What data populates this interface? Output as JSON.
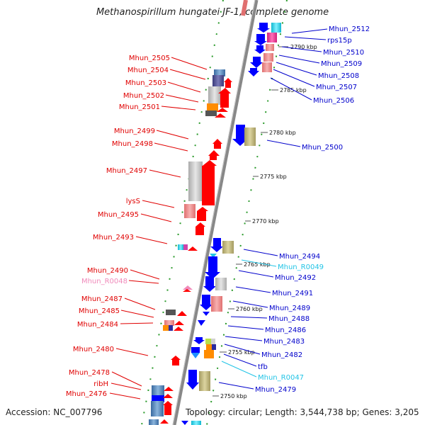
{
  "title": "Methanospirillum hungatei JF-1, complete genome",
  "accession": "Accession: NC_007796",
  "summary": "Topology: circular; Length: 3,544,738 bp; Genes: 3,205",
  "colors": {
    "left_label": "#e00000",
    "right_label": "#0000cc",
    "rna_label_cyan": "#22c4e6",
    "rna_label_pink": "#f08aba",
    "left_gene": "#ff0000",
    "right_gene": "#0000ff",
    "backbone": "#888888",
    "dots": "#2a9a2a"
  },
  "kbp_ticks": [
    "2790 kbp",
    "2785 kbp",
    "2780 kbp",
    "2775 kbp",
    "2770 kbp",
    "2765 kbp",
    "2760 kbp",
    "2755 kbp",
    "2750 kbp"
  ],
  "left_labels": [
    "Mhun_2505",
    "Mhun_2504",
    "Mhun_2503",
    "Mhun_2502",
    "Mhun_2501",
    "Mhun_2499",
    "Mhun_2498",
    "Mhun_2497",
    "lysS",
    "Mhun_2495",
    "Mhun_2493",
    "Mhun_2490",
    "Mhun_R0048",
    "Mhun_2487",
    "Mhun_2485",
    "Mhun_2484",
    "Mhun_2480",
    "Mhun_2478",
    "ribH",
    "Mhun_2476"
  ],
  "right_labels": [
    "Mhun_2512",
    "rps15p",
    "Mhun_2510",
    "Mhun_2509",
    "Mhun_2508",
    "Mhun_2507",
    "Mhun_2506",
    "Mhun_2500",
    "Mhun_2494",
    "Mhun_R0049",
    "Mhun_2492",
    "Mhun_2491",
    "Mhun_2489",
    "Mhun_2488",
    "Mhun_2486",
    "Mhun_2483",
    "Mhun_2482",
    "tfb",
    "Mhun_R0047",
    "Mhun_2479"
  ]
}
